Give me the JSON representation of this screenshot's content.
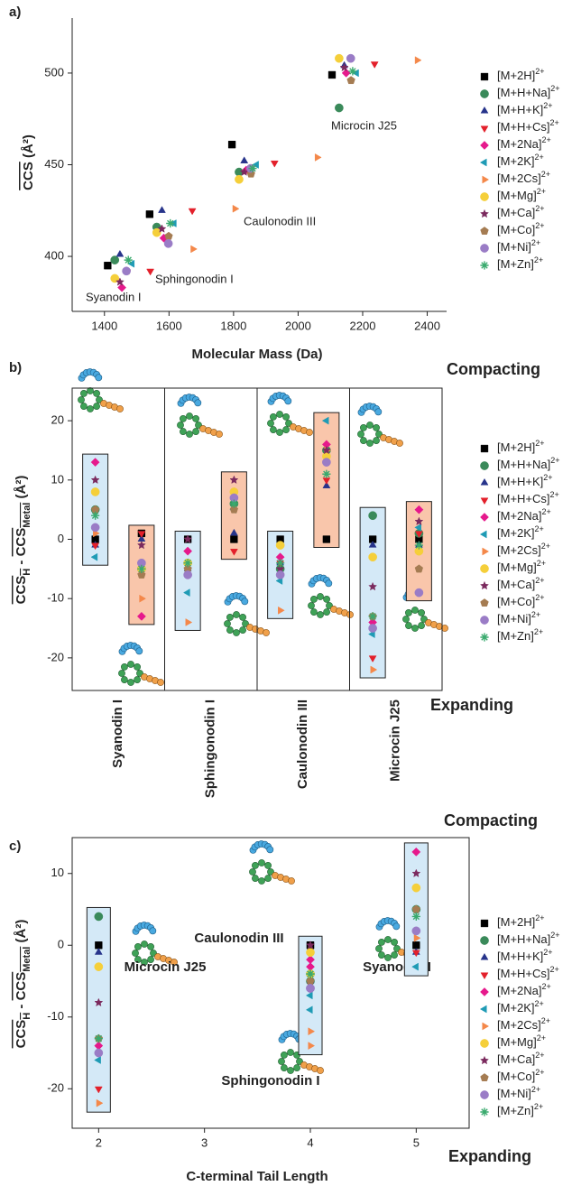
{
  "chart_data": [
    {
      "type": "scatter",
      "panel_label": "a)",
      "x_label": "Molecular Mass (Da)",
      "y_label": [
        "CCS",
        " (Å²)"
      ],
      "xlim": [
        1300,
        2460
      ],
      "xticks": [
        1400,
        1600,
        1800,
        2000,
        2200,
        2400
      ],
      "ylim": [
        370,
        530
      ],
      "yticks": [
        400,
        450,
        500
      ],
      "annotations": [
        "Syanodin I",
        "Sphingonodin I",
        "Caulonodin III",
        "Microcin J25"
      ],
      "series": [
        {
          "name": "[M+2H]2+",
          "color": "#000000",
          "marker": "square",
          "x": [
            1410,
            1540,
            1795,
            2105
          ],
          "values": [
            395,
            423,
            461,
            499
          ]
        },
        {
          "name": "[M+H+Na]2+",
          "color": "#3a8a5a",
          "marker": "circle",
          "x": [
            1432,
            1562,
            1817,
            2127
          ],
          "values": [
            398,
            416,
            446,
            481
          ]
        },
        {
          "name": "[M+H+K]2+",
          "color": "#27348b",
          "marker": "triangle",
          "x": [
            1448,
            1578,
            1833,
            2143
          ],
          "values": [
            401,
            425,
            452,
            504
          ]
        },
        {
          "name": "[M+H+Cs]2+",
          "color": "#e3202b",
          "marker": "triangle-down",
          "x": [
            1542,
            1672,
            1927,
            2237
          ],
          "values": [
            392,
            425,
            451,
            505
          ]
        },
        {
          "name": "[M+2Na]2+",
          "color": "#e6198c",
          "marker": "diamond",
          "x": [
            1454,
            1584,
            1839,
            2149
          ],
          "values": [
            383,
            410,
            447,
            500
          ]
        },
        {
          "name": "[M+2K]2+",
          "color": "#1f9bb5",
          "marker": "triangle-left",
          "x": [
            1486,
            1616,
            1871,
            2181
          ],
          "values": [
            396,
            418,
            450,
            500
          ]
        },
        {
          "name": "[M+2Cs]2+",
          "color": "#f4884a",
          "marker": "triangle-right",
          "x": [
            1674,
            1804,
            2059,
            2369
          ],
          "values": [
            404,
            426,
            454,
            507
          ]
        },
        {
          "name": "[M+Mg]2+",
          "color": "#f5cf3a",
          "marker": "circle",
          "x": [
            1432,
            1562,
            1817,
            2127
          ],
          "values": [
            388,
            413,
            442,
            508
          ]
        },
        {
          "name": "[M+Ca]2+",
          "color": "#7b2a5e",
          "marker": "star",
          "x": [
            1448,
            1578,
            1833,
            2143
          ],
          "values": [
            386,
            415,
            446,
            503
          ]
        },
        {
          "name": "[M+Co]2+",
          "color": "#a57c52",
          "marker": "pentagon",
          "x": [
            1469,
            1599,
            1854,
            2164
          ],
          "values": [
            392,
            411,
            445,
            496
          ]
        },
        {
          "name": "[M+Ni]2+",
          "color": "#9a7cc6",
          "marker": "circle",
          "x": [
            1468,
            1598,
            1853,
            2163
          ],
          "values": [
            392,
            407,
            448,
            508
          ]
        },
        {
          "name": "[M+Zn]2+",
          "color": "#3aaa6e",
          "marker": "asterisk",
          "x": [
            1474,
            1604,
            1859,
            2169
          ],
          "values": [
            398,
            418,
            448,
            501
          ]
        }
      ]
    },
    {
      "type": "strip",
      "panel_label": "b)",
      "y_label": [
        "CCS",
        "H",
        " - ",
        "CCS",
        "Metal",
        " (Å²)"
      ],
      "categories": [
        "Syanodin I",
        null,
        "Sphingonodin I",
        null,
        "Caulonodin III",
        null,
        "Microcin J25",
        null
      ],
      "ylim": [
        -25.5,
        25.5
      ],
      "yticks": [
        -20,
        -10,
        0,
        10,
        20
      ],
      "box_colors": [
        "#d4e9f7",
        "#f9c6ab"
      ],
      "annotations": [
        "Compacting",
        "Expanding"
      ],
      "series": [
        {
          "name": "[M+2H]2+",
          "color": "#000000",
          "marker": "square",
          "values": [
            0,
            1,
            0,
            0,
            0,
            0,
            0,
            0
          ]
        },
        {
          "name": "[M+H+Na]2+",
          "color": "#3a8a5a",
          "marker": "circle",
          "values": [
            5,
            -5,
            -4,
            6,
            -5,
            15,
            4,
            1
          ]
        },
        {
          "name": "[M+H+K]2+",
          "color": "#27348b",
          "marker": "triangle",
          "values": [
            -1,
            0,
            -5,
            1,
            -4,
            9,
            -1,
            -1
          ]
        },
        {
          "name": "[M+H+Cs]2+",
          "color": "#e3202b",
          "marker": "triangle-down",
          "values": [
            -1,
            1,
            -6,
            -2,
            -4,
            10,
            -20,
            1
          ]
        },
        {
          "name": "[M+2Na]2+",
          "color": "#e6198c",
          "marker": "diamond",
          "values": [
            13,
            -13,
            -2,
            8,
            -3,
            16,
            -14,
            5
          ]
        },
        {
          "name": "[M+2K]2+",
          "color": "#1f9bb5",
          "marker": "triangle-left",
          "values": [
            -3,
            -4,
            -9,
            5,
            -7,
            20,
            -16,
            2
          ]
        },
        {
          "name": "[M+2Cs]2+",
          "color": "#f4884a",
          "marker": "triangle-right",
          "values": [
            1,
            -10,
            -14,
            7,
            -12,
            15,
            -22,
            -2
          ]
        },
        {
          "name": "[M+Mg]2+",
          "color": "#f5cf3a",
          "marker": "circle",
          "values": [
            8,
            -5,
            -4,
            8,
            -1,
            14,
            -3,
            -2
          ]
        },
        {
          "name": "[M+Ca]2+",
          "color": "#7b2a5e",
          "marker": "star",
          "values": [
            10,
            -1,
            0,
            10,
            -5,
            15,
            -8,
            3
          ]
        },
        {
          "name": "[M+Co]2+",
          "color": "#a57c52",
          "marker": "pentagon",
          "values": [
            5,
            -6,
            -5,
            5,
            -6,
            13,
            -13,
            -5
          ]
        },
        {
          "name": "[M+Ni]2+",
          "color": "#9a7cc6",
          "marker": "circle",
          "values": [
            2,
            -4,
            -6,
            7,
            -6,
            13,
            -15,
            -9
          ]
        },
        {
          "name": "[M+Zn]2+",
          "color": "#3aaa6e",
          "marker": "asterisk",
          "values": [
            4,
            -5,
            -4,
            6,
            -4,
            11,
            -13,
            -1
          ]
        }
      ]
    },
    {
      "type": "scatter",
      "panel_label": "c)",
      "x_label": "C-terminal Tail Length",
      "y_label": [
        "CCS",
        "H",
        " - ",
        "CCS",
        "Metal",
        " (Å²)"
      ],
      "xlim": [
        1.75,
        5.5
      ],
      "xticks": [
        2,
        3,
        4,
        5
      ],
      "ylim": [
        -25.5,
        15
      ],
      "yticks": [
        -20,
        -10,
        0,
        10
      ],
      "box_colors": [
        "#d4e9f7"
      ],
      "annotations": [
        "Compacting",
        "Expanding",
        "Microcin J25",
        "Caulonodin III",
        "Sphingonodin I",
        "Syanodin I"
      ],
      "x": [
        2,
        4,
        4,
        5
      ],
      "series": [
        {
          "name": "[M+2H]2+",
          "color": "#000000",
          "marker": "square",
          "values": [
            0,
            0,
            0,
            0
          ]
        },
        {
          "name": "[M+H+Na]2+",
          "color": "#3a8a5a",
          "marker": "circle",
          "values": [
            4,
            -4,
            -5,
            5
          ]
        },
        {
          "name": "[M+H+K]2+",
          "color": "#27348b",
          "marker": "triangle",
          "values": [
            -1,
            -5,
            -4,
            -1
          ]
        },
        {
          "name": "[M+H+Cs]2+",
          "color": "#e3202b",
          "marker": "triangle-down",
          "values": [
            -20,
            -6,
            -4,
            -1
          ]
        },
        {
          "name": "[M+2Na]2+",
          "color": "#e6198c",
          "marker": "diamond",
          "values": [
            -14,
            -2,
            -3,
            13
          ]
        },
        {
          "name": "[M+2K]2+",
          "color": "#1f9bb5",
          "marker": "triangle-left",
          "values": [
            -16,
            -9,
            -7,
            -3
          ]
        },
        {
          "name": "[M+2Cs]2+",
          "color": "#f4884a",
          "marker": "triangle-right",
          "values": [
            -22,
            -14,
            -12,
            1
          ]
        },
        {
          "name": "[M+Mg]2+",
          "color": "#f5cf3a",
          "marker": "circle",
          "values": [
            -3,
            -4,
            -1,
            8
          ]
        },
        {
          "name": "[M+Ca]2+",
          "color": "#7b2a5e",
          "marker": "star",
          "values": [
            -8,
            0,
            -5,
            10
          ]
        },
        {
          "name": "[M+Co]2+",
          "color": "#a57c52",
          "marker": "pentagon",
          "values": [
            -13,
            -5,
            -6,
            5
          ]
        },
        {
          "name": "[M+Ni]2+",
          "color": "#9a7cc6",
          "marker": "circle",
          "values": [
            -15,
            -6,
            -6,
            2
          ]
        },
        {
          "name": "[M+Zn]2+",
          "color": "#3aaa6e",
          "marker": "asterisk",
          "values": [
            -13,
            -4,
            -4,
            4
          ]
        }
      ]
    }
  ]
}
